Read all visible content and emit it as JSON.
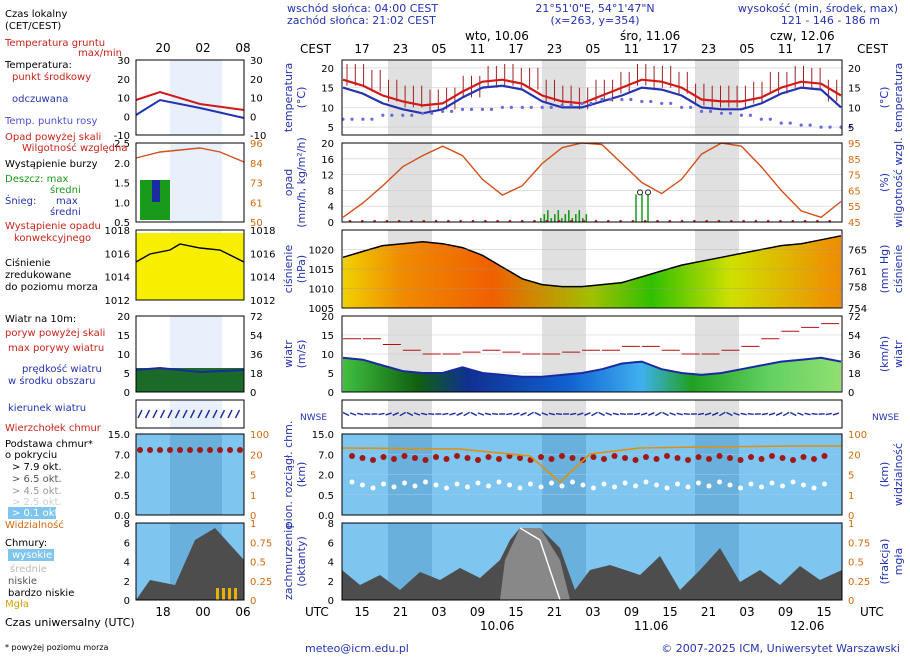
{
  "header": {
    "sunrise": "wschód słońca: 04:00 CEST",
    "sunset": "zachód słońca: 21:02 CEST",
    "coords": "21°51'0\"E, 54°1'47\"N",
    "grid": "(x=263,  y=354)",
    "height_title": "wysokość (min, środek, max)",
    "height_values": "121 - 146 - 186 m"
  },
  "legend": {
    "time_local": "Czas lokalny",
    "time_local2": "(CET/CEST)",
    "soil_temp": "Temperatura gruntu",
    "maxmin": "max/min",
    "temperature": "Temperatura:",
    "mid_point": "punkt środkowy",
    "felt": "odczuwana",
    "dew": "Temp. punktu rosy",
    "precip_above": "Opad powyżej skali",
    "humidity": "Wilgotność względna",
    "storm": "Wystąpienie burzy",
    "rain": "Deszcz: max",
    "rain_mid": "średni",
    "snow": "Śnieg:",
    "snow_max": "max",
    "snow_mid": "średni",
    "conv": "Wystąpienie opadu",
    "conv2": "konwekcyjnego",
    "pressure": "Ciśnienie",
    "pressure2": "zredukowane",
    "pressure3": "do poziomu morza",
    "wind": "Wiatr na 10m:",
    "gust_above": "poryw powyżej skali",
    "gust_max": "max porywy wiatru",
    "wind_speed": "prędkość wiatru",
    "wind_speed2": "w środku obszaru",
    "wind_dir": "kierunek wiatru",
    "cloud_top": "Wierzchołek chmur",
    "cloud_base": "Podstawa chmur*",
    "cloud_base2": "o pokryciu",
    "okt79": "> 7.9 okt.",
    "okt65": "> 6.5 okt.",
    "okt45": "> 4.5 okt.",
    "okt25": "> 2.5 okt.",
    "okt01": "> 0.1 okt.",
    "visibility": "Widzialność",
    "clouds": "Chmury:",
    "high": "wysokie",
    "mid": "średnie",
    "low": "niskie",
    "vlow": "bardzo niskie",
    "fog": "Mgła",
    "utc_label": "Czas uniwersalny (UTC)",
    "footnote": "* powyżej poziomu morza"
  },
  "axes": {
    "cest": "CEST",
    "utc": "UTC",
    "top_hours": [
      "17",
      "23",
      "05",
      "11",
      "17",
      "23",
      "05",
      "11",
      "17",
      "23",
      "05",
      "11",
      "17"
    ],
    "bottom_hours": [
      "15",
      "21",
      "03",
      "09",
      "15",
      "21",
      "03",
      "09",
      "15",
      "21",
      "03",
      "09",
      "15"
    ],
    "top_days": [
      "wto, 10.06",
      "śro, 11.06",
      "czw, 12.06"
    ],
    "bottom_days": [
      "10.06",
      "11.06",
      "12.06"
    ],
    "legend_top_hours": [
      "20",
      "02",
      "08"
    ],
    "legend_bottom_hours": [
      "18",
      "00",
      "06"
    ],
    "temp_label": "temperatura",
    "temp_unit": "(°C)",
    "precip_label": "opad",
    "precip_unit": "(mm/h, kg/m²/h)",
    "hum_label": "wilgotność wzgl.",
    "hum_unit": "(%)",
    "press_label": "ciśnienie",
    "press_unit": "(hPa)",
    "press_unit2": "(mm Hg)",
    "wind_label": "wiatr",
    "wind_unit": "(m/s)",
    "wind_unit2": "(km/h)",
    "cloudh_label": "pion. rozciągł. chm.",
    "cloudh_unit": "(km)",
    "vis_label": "widzialność",
    "vis_unit": "(km)",
    "cover_label": "zachmurzenie",
    "cover_unit": "(oktanty)",
    "fog_label": "mgła",
    "fog_unit": "(frakcja)",
    "compass": "NWSE"
  },
  "footer": {
    "email": "meteo@icm.edu.pl",
    "copyright": "© 2007-2025 ICM, Uniwersytet Warszawski"
  },
  "colors": {
    "blue": "#2433b0",
    "red": "#d01a1a",
    "orange": "#d26a10",
    "panel_blue": "#7ec5f0"
  },
  "chart_data": {
    "type": "line",
    "x": [
      "15",
      "18",
      "21",
      "00",
      "03",
      "06",
      "09",
      "12",
      "15",
      "18",
      "21",
      "00",
      "03",
      "06",
      "09",
      "12",
      "15",
      "18",
      "21",
      "00",
      "03",
      "06",
      "09",
      "12",
      "15",
      "18"
    ],
    "series": [
      {
        "name": "temperatura",
        "values": [
          17,
          15.5,
          13,
          11.5,
          10.5,
          11,
          14,
          16.5,
          17,
          16,
          13,
          11.5,
          11,
          13,
          15,
          17,
          16.5,
          15,
          12,
          11.5,
          11.5,
          12.5,
          15,
          16.5,
          16,
          13
        ]
      },
      {
        "name": "odczuwana",
        "values": [
          15,
          13.5,
          11,
          9.5,
          8.5,
          9.5,
          12.5,
          15,
          15.5,
          14.5,
          11.5,
          10,
          10,
          11.5,
          13,
          15,
          14.5,
          13,
          10,
          9.5,
          9.5,
          11,
          13.5,
          15,
          14.5,
          10
        ]
      },
      {
        "name": "punkt rosy",
        "values": [
          7,
          7,
          8,
          8,
          8.5,
          9,
          9.5,
          9.5,
          10,
          10,
          10,
          10.5,
          11,
          12,
          12,
          11.5,
          11,
          10,
          9,
          8.5,
          8,
          7,
          6,
          5.5,
          5,
          5
        ]
      },
      {
        "name": "wilgotność",
        "values": [
          48,
          57,
          68,
          80,
          87,
          93,
          87,
          72,
          62,
          68,
          82,
          92,
          95,
          94,
          82,
          70,
          63,
          72,
          88,
          95,
          93,
          80,
          65,
          52,
          48,
          58
        ]
      },
      {
        "name": "ciśnienie",
        "values": [
          1018,
          1019.5,
          1021,
          1021.5,
          1022,
          1021.5,
          1020.5,
          1018.5,
          1015.5,
          1012.5,
          1011,
          1010.5,
          1010.5,
          1011,
          1011.5,
          1013,
          1014.5,
          1016,
          1017,
          1018,
          1019,
          1020,
          1021,
          1021.5,
          1022.5,
          1023.5
        ]
      },
      {
        "name": "prędkość wiatru",
        "values": [
          9,
          8.5,
          7,
          5.5,
          5,
          5,
          6.5,
          5,
          4.5,
          4,
          4,
          4.5,
          5,
          6,
          7.5,
          8,
          6,
          5,
          4.5,
          5,
          6,
          7,
          8,
          8.5,
          9,
          8
        ]
      },
      {
        "name": "porywy",
        "values": [
          14,
          14,
          12.5,
          11,
          10,
          10,
          10.5,
          11,
          10.5,
          10,
          10,
          10.5,
          11,
          11,
          12,
          12,
          11,
          10,
          10,
          11,
          12,
          14,
          16,
          17,
          18,
          16
        ]
      }
    ],
    "ylim_temp": [
      3,
      22
    ],
    "ylim_precip": [
      0,
      20
    ],
    "ylim_pressure": [
      1005,
      1025
    ],
    "ylim_wind": [
      0,
      20
    ],
    "ylim_cloud": [
      0,
      15
    ],
    "ylim_cover": [
      0,
      8
    ]
  }
}
